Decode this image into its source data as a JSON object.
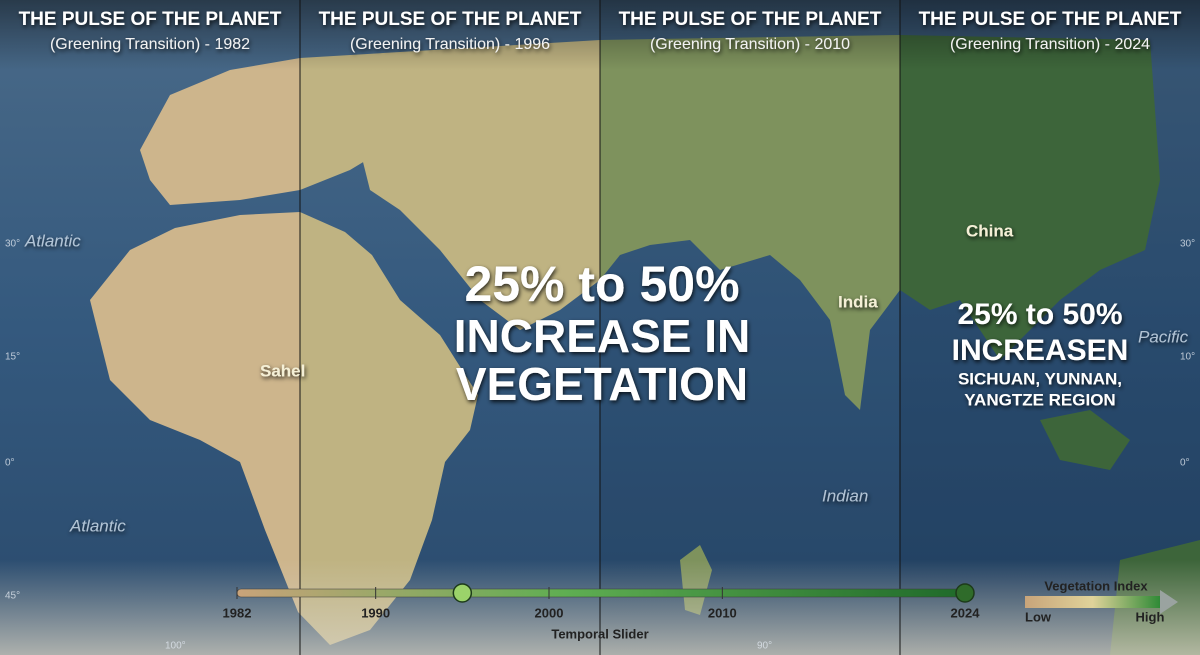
{
  "panels": [
    {
      "title": "THE PULSE OF THE PLANET",
      "subtitle": "(Greening Transition) - 1982"
    },
    {
      "title": "THE PULSE OF THE PLANET",
      "subtitle": "(Greening Transition) - 1996"
    },
    {
      "title": "THE PULSE OF THE PLANET",
      "subtitle": "(Greening Transition) - 2010"
    },
    {
      "title": "THE PULSE OF THE PLANET",
      "subtitle": "(Greening Transition) - 2024"
    }
  ],
  "map_labels": [
    "Atlantic",
    "Atlantic",
    "Sahel",
    "India",
    "Indian",
    "China",
    "Pacific"
  ],
  "graticule_labels": [
    "30°",
    "15°",
    "0°",
    "45°",
    "100°",
    "90°",
    "30°",
    "10°",
    "0°"
  ],
  "center_overlay": {
    "lines": [
      "25% to 50%",
      "INCREASE IN",
      "VEGETATION"
    ]
  },
  "region_overlay": {
    "lines": [
      "25% to 50%",
      "INCREASEN",
      "SICHUAN, YUNNAN,",
      "YANGTZE REGION"
    ]
  },
  "slider": {
    "title": "Temporal Slider",
    "range": [
      1982,
      2024
    ],
    "ticks": [
      1982,
      1990,
      2000,
      2010,
      2024
    ],
    "handles": [
      1995,
      2024
    ]
  },
  "legend": {
    "title": "Vegetation Index",
    "low": "Low",
    "high": "High"
  }
}
